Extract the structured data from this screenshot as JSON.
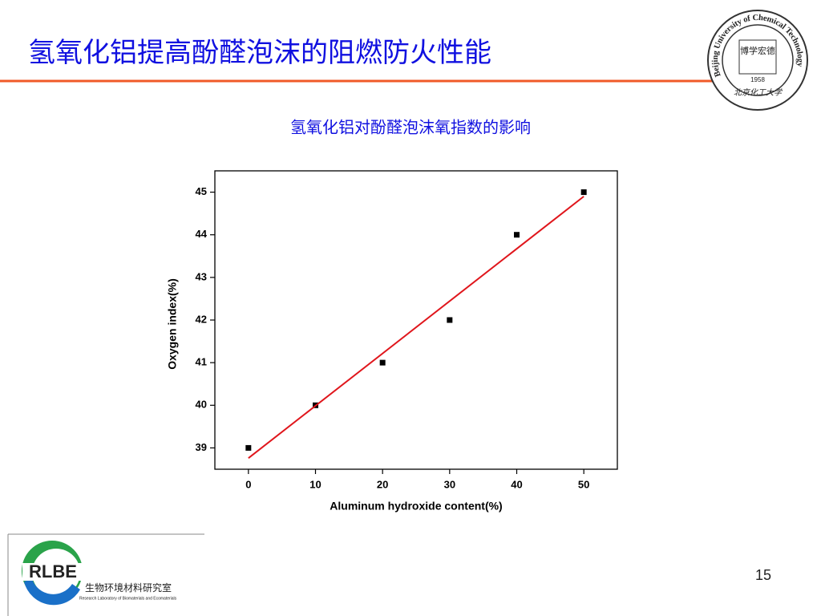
{
  "slide_title": "氢氧化铝提高酚醛泡沫的阻燃防火性能",
  "page_number": "15",
  "university_seal": {
    "name": "Beijing University of Chemical Technology",
    "motto_1": "博学",
    "motto_2": "宏德",
    "year": "1958",
    "chinese_name": "北京化工大学"
  },
  "lab_logo": {
    "acronym": "RLBE",
    "chinese_name": "生物环境材料研究室",
    "english_name": "Research Laboratory of Biomaterials and Ecomaterials"
  },
  "chart_data": {
    "type": "scatter",
    "title": "氢氧化铝对酚醛泡沫氧指数的影响",
    "x_label": "Aluminum hydroxide content(%)",
    "y_label": "Oxygen index(%)",
    "x": [
      0,
      10,
      20,
      30,
      40,
      50
    ],
    "series": [
      {
        "color": "#000000",
        "values": [
          39,
          40,
          41,
          42,
          44,
          45
        ]
      },
      {
        "type": "line",
        "color": "#e0161c",
        "x": [
          0,
          50
        ],
        "values": [
          38.76,
          44.9
        ]
      }
    ],
    "xlim": [
      -5,
      55
    ],
    "ylim": [
      38.5,
      45.5
    ],
    "xticks": [
      0,
      10,
      20,
      30,
      40,
      50
    ],
    "yticks": [
      39,
      40,
      41,
      42,
      43,
      44,
      45
    ]
  }
}
